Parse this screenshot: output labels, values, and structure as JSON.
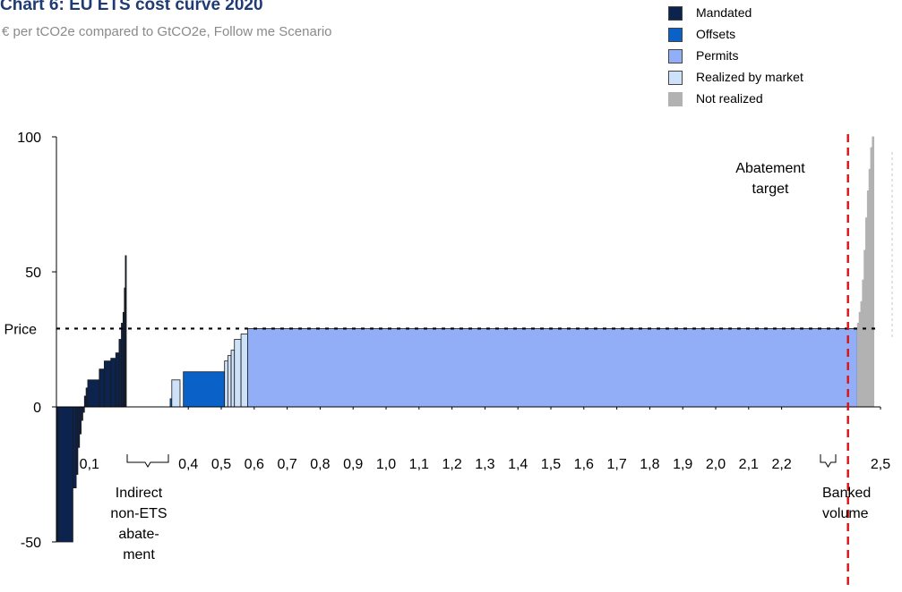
{
  "chart_data": {
    "type": "bar",
    "title": "Chart 6: EU ETS cost curve 2020",
    "subtitle": "€ per tCO2e compared to GtCO2e, Follow me Scenario",
    "ylim": [
      -50,
      100
    ],
    "xlim": [
      0,
      2.5
    ],
    "y_ticks": [
      "100",
      "50",
      "0",
      "-50"
    ],
    "x_tick_labels": [
      "0,1",
      "0,4",
      "0,5",
      "0,6",
      "0,7",
      "0,8",
      "0,9",
      "1,0",
      "1,1",
      "1,2",
      "1,3",
      "1,4",
      "1,5",
      "1,6",
      "1,7",
      "1,8",
      "1,9",
      "2,0",
      "2,1",
      "2,2",
      "2,5"
    ],
    "price": 29,
    "price_label": "Price",
    "abatement_target": 2.4,
    "abatement_target_label": [
      "Abatement",
      "target"
    ],
    "legend": [
      {
        "name": "Mandated",
        "color": "#0c234e"
      },
      {
        "name": "Offsets",
        "color": "#0a62c9"
      },
      {
        "name": "Permits",
        "color": "#92aef7"
      },
      {
        "name": "Realized by market",
        "color": "#cde1f8"
      },
      {
        "name": "Not realized",
        "color": "#b2b2b2"
      }
    ],
    "annotations": [
      {
        "text": [
          "Indirect",
          "non-ETS",
          "abate-",
          "ment"
        ],
        "x_range": [
          0.22,
          0.34
        ]
      },
      {
        "text": [
          "Banked",
          "volume"
        ],
        "x_range": [
          2.4,
          2.44
        ]
      }
    ],
    "segments": [
      {
        "category": "Mandated",
        "x0": 0.0,
        "x1": 0.005,
        "y": -50
      },
      {
        "category": "Mandated",
        "x0": 0.005,
        "x1": 0.05,
        "y": -50
      },
      {
        "category": "Mandated",
        "x0": 0.05,
        "x1": 0.06,
        "y": -30
      },
      {
        "category": "Mandated",
        "x0": 0.06,
        "x1": 0.065,
        "y": -25
      },
      {
        "category": "Mandated",
        "x0": 0.065,
        "x1": 0.07,
        "y": -15
      },
      {
        "category": "Mandated",
        "x0": 0.07,
        "x1": 0.075,
        "y": -10
      },
      {
        "category": "Mandated",
        "x0": 0.075,
        "x1": 0.08,
        "y": -5
      },
      {
        "category": "Mandated",
        "x0": 0.08,
        "x1": 0.085,
        "y": -2
      },
      {
        "category": "Mandated",
        "x0": 0.085,
        "x1": 0.09,
        "y": 4
      },
      {
        "category": "Mandated",
        "x0": 0.09,
        "x1": 0.095,
        "y": 7
      },
      {
        "category": "Mandated",
        "x0": 0.095,
        "x1": 0.13,
        "y": 10
      },
      {
        "category": "Mandated",
        "x0": 0.13,
        "x1": 0.145,
        "y": 14
      },
      {
        "category": "Mandated",
        "x0": 0.145,
        "x1": 0.165,
        "y": 17
      },
      {
        "category": "Mandated",
        "x0": 0.165,
        "x1": 0.18,
        "y": 18
      },
      {
        "category": "Mandated",
        "x0": 0.18,
        "x1": 0.19,
        "y": 20
      },
      {
        "category": "Mandated",
        "x0": 0.19,
        "x1": 0.197,
        "y": 25
      },
      {
        "category": "Mandated",
        "x0": 0.197,
        "x1": 0.202,
        "y": 31
      },
      {
        "category": "Mandated",
        "x0": 0.202,
        "x1": 0.206,
        "y": 35
      },
      {
        "category": "Mandated",
        "x0": 0.206,
        "x1": 0.209,
        "y": 44
      },
      {
        "category": "Mandated",
        "x0": 0.209,
        "x1": 0.212,
        "y": 56
      },
      {
        "category": "Offsets",
        "x0": 0.345,
        "x1": 0.35,
        "y": 3
      },
      {
        "category": "Realized by market",
        "x0": 0.35,
        "x1": 0.375,
        "y": 10
      },
      {
        "category": "Offsets",
        "x0": 0.385,
        "x1": 0.51,
        "y": 13
      },
      {
        "category": "Realized by market",
        "x0": 0.51,
        "x1": 0.52,
        "y": 17
      },
      {
        "category": "Realized by market",
        "x0": 0.52,
        "x1": 0.53,
        "y": 19
      },
      {
        "category": "Realized by market",
        "x0": 0.53,
        "x1": 0.54,
        "y": 21
      },
      {
        "category": "Realized by market",
        "x0": 0.54,
        "x1": 0.56,
        "y": 25
      },
      {
        "category": "Realized by market",
        "x0": 0.56,
        "x1": 0.58,
        "y": 27
      },
      {
        "category": "Permits",
        "x0": 0.58,
        "x1": 2.43,
        "y": 29
      },
      {
        "category": "Not realized",
        "x0": 2.43,
        "x1": 2.435,
        "y": 31
      },
      {
        "category": "Not realized",
        "x0": 2.435,
        "x1": 2.44,
        "y": 35
      },
      {
        "category": "Not realized",
        "x0": 2.44,
        "x1": 2.445,
        "y": 39
      },
      {
        "category": "Not realized",
        "x0": 2.445,
        "x1": 2.45,
        "y": 47
      },
      {
        "category": "Not realized",
        "x0": 2.45,
        "x1": 2.455,
        "y": 58
      },
      {
        "category": "Not realized",
        "x0": 2.455,
        "x1": 2.46,
        "y": 70
      },
      {
        "category": "Not realized",
        "x0": 2.46,
        "x1": 2.465,
        "y": 80
      },
      {
        "category": "Not realized",
        "x0": 2.465,
        "x1": 2.47,
        "y": 88
      },
      {
        "category": "Not realized",
        "x0": 2.47,
        "x1": 2.475,
        "y": 96
      },
      {
        "category": "Not realized",
        "x0": 2.475,
        "x1": 2.48,
        "y": 100
      }
    ]
  }
}
